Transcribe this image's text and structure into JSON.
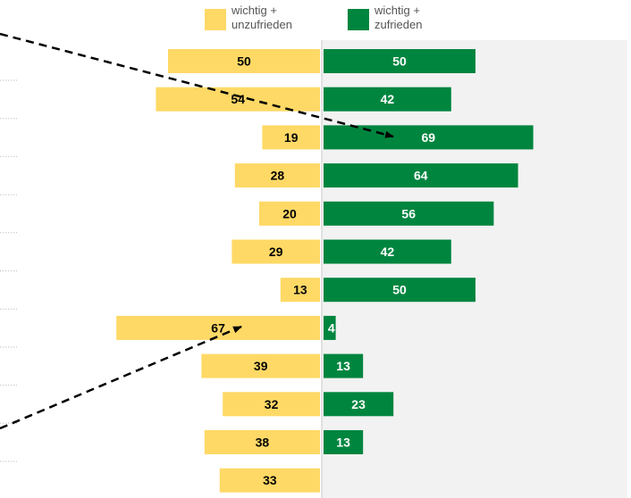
{
  "colors": {
    "unsatisfied": "#FFD966",
    "satisfied": "#00853F",
    "panel": "#F2F2F2",
    "label_dark": "#000000",
    "label_light": "#FFFFFF"
  },
  "legend": {
    "unsatisfied": "wichtig + unzufrieden",
    "satisfied": "wichtig + zufrieden"
  },
  "chart_data": {
    "type": "bar",
    "orientation": "horizontal-diverging",
    "series": [
      {
        "name": "wichtig + unzufrieden",
        "values": [
          50,
          54,
          19,
          28,
          20,
          29,
          13,
          67,
          39,
          32,
          38,
          33
        ]
      },
      {
        "name": "wichtig + zufrieden",
        "values": [
          50,
          42,
          69,
          64,
          56,
          42,
          50,
          4,
          13,
          23,
          13,
          null
        ]
      }
    ],
    "annotations": [
      "dashed arrow to row 3 (zufrieden)",
      "dashed arrow to row 8 (unzufrieden)"
    ],
    "legend_position": "top"
  }
}
